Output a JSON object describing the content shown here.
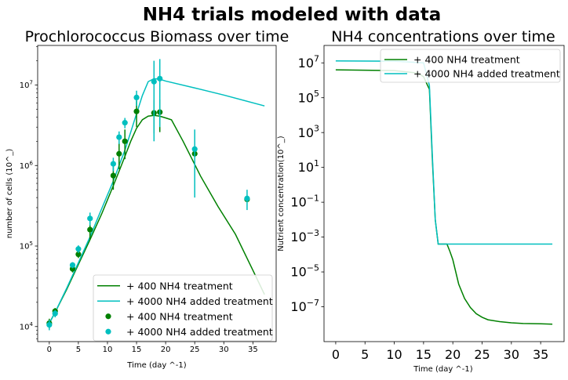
{
  "suptitle": "NH4 trials modeled with data",
  "chart_data": [
    {
      "type": "line",
      "title": "Prochlorococcus Biomass over time",
      "xlabel": "Time (day ^-1)",
      "ylabel": "number of cells (10^_)",
      "yscale": "log",
      "xlim": [
        -2,
        39
      ],
      "ylim": [
        6500,
        31000000
      ],
      "xticks": [
        0,
        5,
        10,
        15,
        20,
        25,
        30,
        35
      ],
      "yticks": [
        {
          "value": 10000,
          "base": "10",
          "exp": "4"
        },
        {
          "value": 100000,
          "base": "10",
          "exp": "5"
        },
        {
          "value": 1000000,
          "base": "10",
          "exp": "6"
        },
        {
          "value": 10000000,
          "base": "10",
          "exp": "7"
        }
      ],
      "legend_position": "lower-right",
      "legend": [
        {
          "label": "+ 400 NH4 treatment",
          "kind": "line",
          "color": "#008000"
        },
        {
          "label": "+ 4000 NH4 added treatment",
          "kind": "line",
          "color": "#00bfbf"
        },
        {
          "label": "+ 400 NH4 treatment",
          "kind": "dot",
          "color": "#008000"
        },
        {
          "label": "+ 4000 NH4 added treatment",
          "kind": "dot",
          "color": "#00bfbf"
        }
      ],
      "series": [
        {
          "name": "+ 400 NH4 treatment",
          "kind": "line",
          "color": "#008000",
          "x": [
            0,
            1,
            3,
            5,
            7,
            9,
            11,
            12,
            13,
            14,
            15,
            16,
            17,
            18,
            19,
            20,
            21,
            23,
            26,
            29,
            32,
            35,
            37
          ],
          "y": [
            11000,
            15000,
            29000,
            59000,
            120000,
            250000,
            560000,
            850000,
            1300000,
            2000000,
            2900000,
            3700000,
            4100000,
            4200000,
            4100000,
            3900000,
            3700000,
            2000000,
            740000,
            310000,
            140000,
            50000,
            25000
          ]
        },
        {
          "name": "+ 4000 NH4 added treatment",
          "kind": "line",
          "color": "#00bfbf",
          "x": [
            0,
            1,
            3,
            5,
            7,
            9,
            11,
            12,
            13,
            14,
            15,
            16,
            17,
            18,
            19,
            20,
            25,
            30,
            37
          ],
          "y": [
            11000,
            15000,
            30000,
            62000,
            130000,
            290000,
            640000,
            1000000,
            1550000,
            2600000,
            4400000,
            7400000,
            11000000,
            12000000,
            11800000,
            11200000,
            9200000,
            7500000,
            5500000
          ]
        },
        {
          "name": "+ 400 NH4 treatment",
          "kind": "scatter",
          "color": "#008000",
          "x": [
            0,
            1,
            4,
            5,
            7,
            11,
            12,
            13,
            15,
            18,
            19,
            25,
            34
          ],
          "y": [
            11000,
            15500,
            52000,
            79000,
            160000,
            750000,
            1400000,
            2000000,
            4700000,
            4500000,
            4600000,
            1400000,
            380000
          ],
          "err": [
            1500,
            1500,
            5000,
            8000,
            40000,
            250000,
            500000,
            800000,
            1700000,
            2000000,
            2000000,
            0,
            0
          ]
        },
        {
          "name": "+ 4000 NH4 added treatment",
          "kind": "scatter",
          "color": "#00bfbf",
          "x": [
            0,
            1,
            4,
            5,
            7,
            11,
            12,
            13,
            15,
            18,
            19,
            25,
            34
          ],
          "y": [
            10500,
            14500,
            58000,
            92000,
            220000,
            1050000,
            2250000,
            3400000,
            7000000,
            11000000,
            12000000,
            1600000,
            390000
          ],
          "err": [
            1500,
            1500,
            5000,
            10000,
            40000,
            200000,
            400000,
            500000,
            1500000,
            9000000,
            9000000,
            1200000,
            110000
          ]
        }
      ]
    },
    {
      "type": "line",
      "title": "NH4 concentrations over time",
      "xlabel": "Time (day ^-1)",
      "ylabel": "Nutrient concentration(10^_)",
      "yscale": "log",
      "xlim": [
        -2,
        39
      ],
      "ylim": [
        1e-09,
        100000000.0
      ],
      "xticks": [
        0,
        5,
        10,
        15,
        20,
        25,
        30,
        35
      ],
      "yticks": [
        {
          "value": 10000000.0,
          "base": "10",
          "exp": "7"
        },
        {
          "value": 100000.0,
          "base": "10",
          "exp": "5"
        },
        {
          "value": 1000.0,
          "base": "10",
          "exp": "3"
        },
        {
          "value": 10.0,
          "base": "10",
          "exp": "1"
        },
        {
          "value": 0.1,
          "base": "10",
          "exp": "−1"
        },
        {
          "value": 0.001,
          "base": "10",
          "exp": "−3"
        },
        {
          "value": 1e-05,
          "base": "10",
          "exp": "−5"
        },
        {
          "value": 1e-07,
          "base": "10",
          "exp": "−7"
        }
      ],
      "legend_position": "upper-right",
      "legend": [
        {
          "label": "+ 400 NH4 treatment",
          "kind": "line",
          "color": "#008000"
        },
        {
          "label": "+ 4000 NH4 added treatment",
          "kind": "line",
          "color": "#00bfbf"
        }
      ],
      "series": [
        {
          "name": "+ 400 NH4 treatment",
          "kind": "line",
          "color": "#008000",
          "x": [
            0,
            10,
            14,
            15,
            16,
            16.5,
            17,
            17.5,
            18,
            18.5,
            19,
            19.5,
            20,
            21,
            22,
            23,
            24,
            25,
            26,
            28,
            30,
            32,
            35,
            37
          ],
          "y": [
            4000000.0,
            3600000.0,
            2600000.0,
            1600000.0,
            300000,
            30,
            0.01,
            0.0004,
            0.0004,
            0.0004,
            0.0004,
            0.00015,
            5e-05,
            2e-06,
            3e-07,
            9e-08,
            4e-08,
            2.5e-08,
            1.8e-08,
            1.4e-08,
            1.2e-08,
            1.1e-08,
            1.05e-08,
            1e-08
          ]
        },
        {
          "name": "+ 4000 NH4 added treatment",
          "kind": "line",
          "color": "#00bfbf",
          "x": [
            0,
            10,
            15,
            16,
            16.5,
            17,
            17.5,
            18,
            20,
            25,
            30,
            37
          ],
          "y": [
            13000000.0,
            12500000.0,
            10000000.0,
            500000,
            50,
            0.01,
            0.0004,
            0.0004,
            0.0004,
            0.0004,
            0.0004,
            0.0004
          ]
        }
      ]
    }
  ]
}
